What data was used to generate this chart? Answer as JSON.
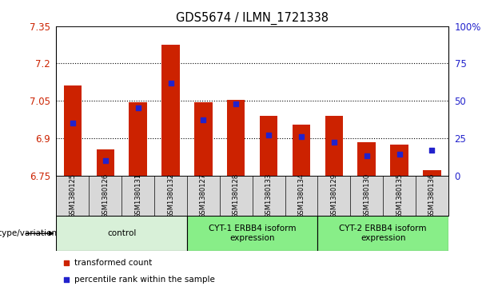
{
  "title": "GDS5674 / ILMN_1721338",
  "samples": [
    "GSM1380125",
    "GSM1380126",
    "GSM1380131",
    "GSM1380132",
    "GSM1380127",
    "GSM1380128",
    "GSM1380133",
    "GSM1380134",
    "GSM1380129",
    "GSM1380130",
    "GSM1380135",
    "GSM1380136"
  ],
  "transformed_counts": [
    7.11,
    6.855,
    7.045,
    7.275,
    7.045,
    7.055,
    6.99,
    6.955,
    6.99,
    6.885,
    6.875,
    6.77
  ],
  "percentile_ranks": [
    35,
    10,
    45,
    62,
    37,
    48,
    27,
    26,
    22,
    13,
    14,
    17
  ],
  "groups": [
    {
      "label": "control",
      "start": 0,
      "end": 3,
      "color": "#d0f0d0"
    },
    {
      "label": "CYT-1 ERBB4 isoform\nexpression",
      "start": 4,
      "end": 7,
      "color": "#90ee90"
    },
    {
      "label": "CYT-2 ERBB4 isoform\nexpression",
      "start": 8,
      "end": 11,
      "color": "#90ee90"
    }
  ],
  "ylim_left": [
    6.75,
    7.35
  ],
  "ylim_right": [
    0,
    100
  ],
  "yticks_left": [
    6.75,
    6.9,
    7.05,
    7.2,
    7.35
  ],
  "yticks_left_labels": [
    "6.75",
    "6.9",
    "7.05",
    "7.2",
    "7.35"
  ],
  "yticks_right": [
    0,
    25,
    50,
    75,
    100
  ],
  "yticks_right_labels": [
    "0",
    "25",
    "50",
    "75",
    "100%"
  ],
  "bar_color": "#cc2200",
  "dot_color": "#2222cc",
  "bar_width": 0.55,
  "genotype_label": "genotype/variation",
  "legend_items": [
    {
      "color": "#cc2200",
      "label": "transformed count"
    },
    {
      "color": "#2222cc",
      "label": "percentile rank within the sample"
    }
  ],
  "group_colors": [
    "#d8f0d8",
    "#88ee88",
    "#88ee88"
  ],
  "tick_label_color_left": "#cc2200",
  "tick_label_color_right": "#2222cc",
  "sample_bg": "#d8d8d8"
}
